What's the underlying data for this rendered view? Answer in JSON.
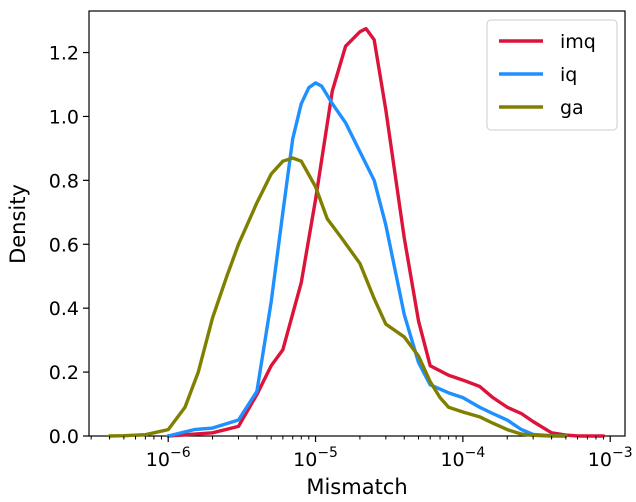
{
  "chart_data": {
    "type": "line",
    "xlabel": "Mismatch",
    "ylabel": "Density",
    "x_scale": "log",
    "xlim": [
      2.9e-07,
      0.00126
    ],
    "ylim": [
      0,
      1.33
    ],
    "x_major_ticks": [
      {
        "value": 1e-06,
        "base": "10",
        "exp": "−6"
      },
      {
        "value": 1e-05,
        "base": "10",
        "exp": "−5"
      },
      {
        "value": 0.0001,
        "base": "10",
        "exp": "−4"
      },
      {
        "value": 0.001,
        "base": "10",
        "exp": "−3"
      }
    ],
    "y_ticks": [
      {
        "value": 0.0,
        "label": "0.0"
      },
      {
        "value": 0.2,
        "label": "0.2"
      },
      {
        "value": 0.4,
        "label": "0.4"
      },
      {
        "value": 0.6,
        "label": "0.6"
      },
      {
        "value": 0.8,
        "label": "0.8"
      },
      {
        "value": 1.0,
        "label": "1.0"
      },
      {
        "value": 1.2,
        "label": "1.2"
      }
    ],
    "legend_position": "top-right",
    "grid": false,
    "series": [
      {
        "name": "imq",
        "color": "#dc143c",
        "x": [
          1e-06,
          2e-06,
          3e-06,
          4e-06,
          5e-06,
          6e-06,
          8e-06,
          1e-05,
          1.3e-05,
          1.6e-05,
          2e-05,
          2.2e-05,
          2.5e-05,
          3e-05,
          4e-05,
          5e-05,
          6e-05,
          8e-05,
          0.0001,
          0.00013,
          0.00016,
          0.0002,
          0.00025,
          0.0003,
          0.0004,
          0.0005,
          0.0006,
          0.0007,
          0.0008,
          0.0009
        ],
        "y": [
          0.0,
          0.01,
          0.03,
          0.13,
          0.22,
          0.27,
          0.48,
          0.74,
          1.08,
          1.22,
          1.265,
          1.275,
          1.24,
          1.02,
          0.62,
          0.36,
          0.22,
          0.19,
          0.175,
          0.155,
          0.12,
          0.09,
          0.07,
          0.045,
          0.01,
          0.003,
          0.0,
          0.0,
          0.0,
          0.0
        ]
      },
      {
        "name": "iq",
        "color": "#1e90ff",
        "x": [
          1e-06,
          1.5e-06,
          2e-06,
          3e-06,
          4e-06,
          5e-06,
          6e-06,
          7e-06,
          8e-06,
          9e-06,
          1e-05,
          1.1e-05,
          1.3e-05,
          1.6e-05,
          2e-05,
          2.5e-05,
          3e-05,
          4e-05,
          5e-05,
          6e-05,
          8e-05,
          0.0001,
          0.00013,
          0.00016,
          0.0002,
          0.00025,
          0.0003,
          0.0004,
          0.0005
        ],
        "y": [
          0.0,
          0.02,
          0.025,
          0.05,
          0.14,
          0.42,
          0.7,
          0.93,
          1.04,
          1.09,
          1.105,
          1.095,
          1.04,
          0.98,
          0.89,
          0.8,
          0.66,
          0.38,
          0.23,
          0.16,
          0.135,
          0.12,
          0.09,
          0.07,
          0.05,
          0.02,
          0.005,
          0.001,
          0.0
        ]
      },
      {
        "name": "ga",
        "color": "#808000",
        "x": [
          4e-07,
          5e-07,
          7e-07,
          1e-06,
          1.3e-06,
          1.6e-06,
          2e-06,
          2.5e-06,
          3e-06,
          4e-06,
          5e-06,
          6e-06,
          7e-06,
          8e-06,
          1e-05,
          1.2e-05,
          1.5e-05,
          2e-05,
          2.5e-05,
          3e-05,
          4e-05,
          5e-05,
          6e-05,
          7e-05,
          8e-05,
          0.0001,
          0.00013,
          0.00016,
          0.0002,
          0.00025,
          0.0003,
          0.0004,
          0.0005
        ],
        "y": [
          0.0,
          0.001,
          0.004,
          0.02,
          0.09,
          0.2,
          0.37,
          0.5,
          0.6,
          0.73,
          0.82,
          0.86,
          0.87,
          0.86,
          0.78,
          0.68,
          0.62,
          0.54,
          0.43,
          0.35,
          0.31,
          0.25,
          0.17,
          0.12,
          0.09,
          0.075,
          0.06,
          0.04,
          0.02,
          0.006,
          0.002,
          0.0,
          0.0
        ]
      }
    ]
  }
}
